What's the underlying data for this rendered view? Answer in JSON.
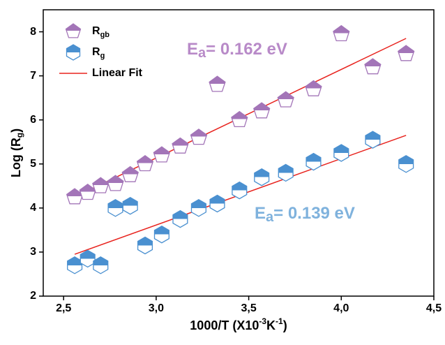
{
  "chart_data": {
    "type": "scatter",
    "x_label": "1000/T (X10",
    "x_label_sup1": "-3",
    "x_label_mid": "K",
    "x_label_sup2": "-1",
    "x_label_end": ")",
    "y_label": "Log (R",
    "y_label_sub": "g",
    "y_label_end": ")",
    "xlim": [
      2.39,
      4.5
    ],
    "ylim": [
      2,
      8.5
    ],
    "xticks": [
      {
        "value": 2.5,
        "label": "2,5"
      },
      {
        "value": 3.0,
        "label": "3,0"
      },
      {
        "value": 3.5,
        "label": "3,5"
      },
      {
        "value": 4.0,
        "label": "4,0"
      },
      {
        "value": 4.5,
        "label": "4,5"
      }
    ],
    "yticks": [
      2,
      3,
      4,
      5,
      6,
      7,
      8
    ],
    "series": [
      {
        "name": "R",
        "name_sub": "gb",
        "color": "#a375b8",
        "marker": "pentagon",
        "x": [
          2.56,
          2.63,
          2.7,
          2.78,
          2.86,
          2.94,
          3.03,
          3.13,
          3.23,
          3.33,
          3.45,
          3.57,
          3.7,
          3.85,
          4.0,
          4.17,
          4.35
        ],
        "values": [
          4.25,
          4.35,
          4.5,
          4.55,
          4.75,
          5.0,
          5.2,
          5.4,
          5.6,
          6.8,
          6.0,
          6.2,
          6.45,
          6.7,
          7.95,
          7.2,
          7.5
        ]
      },
      {
        "name": "R",
        "name_sub": "g",
        "color": "#4a90d0",
        "marker": "hexagon",
        "x": [
          2.56,
          2.63,
          2.7,
          2.78,
          2.86,
          2.94,
          3.03,
          3.13,
          3.23,
          3.33,
          3.45,
          3.57,
          3.7,
          3.85,
          4.0,
          4.17,
          4.35
        ],
        "values": [
          2.7,
          2.85,
          2.7,
          4.0,
          4.05,
          3.15,
          3.4,
          3.75,
          4.0,
          4.1,
          4.4,
          4.7,
          4.8,
          5.05,
          5.25,
          5.55,
          5.0
        ]
      }
    ],
    "fit_name": "Linear Fit",
    "fit_color": "#e8231e",
    "fits": [
      {
        "x": [
          2.56,
          4.35
        ],
        "values": [
          4.25,
          7.85
        ]
      },
      {
        "x": [
          2.56,
          4.35
        ],
        "values": [
          2.95,
          5.65
        ]
      }
    ],
    "annotations": [
      {
        "text": "E",
        "sub": "a",
        "rest": "= 0.162 eV",
        "color": "#b88ac8"
      },
      {
        "text": "E",
        "sub": "a",
        "rest": "= 0.139 eV",
        "color": "#7fb2dd"
      }
    ]
  }
}
